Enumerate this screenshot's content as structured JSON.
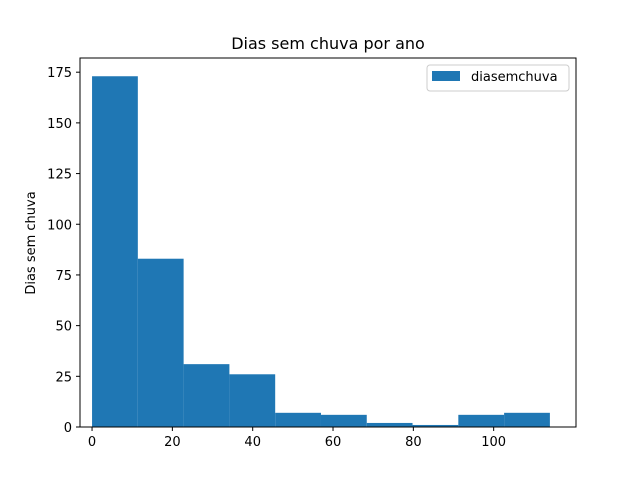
{
  "chart_data": {
    "type": "bar",
    "title": "Dias sem chuva por ano",
    "xlabel": "",
    "ylabel": "Dias sem chuva",
    "xlim": [
      -3,
      120.5
    ],
    "ylim": [
      0,
      182
    ],
    "xticks": [
      0,
      20,
      40,
      60,
      80,
      100
    ],
    "yticks": [
      0,
      25,
      50,
      75,
      100,
      125,
      150,
      175
    ],
    "bin_edges": [
      0,
      11.4,
      22.8,
      34.2,
      45.6,
      57.0,
      68.4,
      79.8,
      91.2,
      102.6,
      114.0
    ],
    "values": [
      173,
      83,
      31,
      26,
      7,
      6,
      2,
      1,
      6,
      7
    ],
    "series": [
      {
        "name": "diasemchuva",
        "values": [
          173,
          83,
          31,
          26,
          7,
          6,
          2,
          1,
          6,
          7
        ]
      }
    ],
    "legend": "top-right",
    "grid": false,
    "bar_color": "#1f77b4"
  }
}
